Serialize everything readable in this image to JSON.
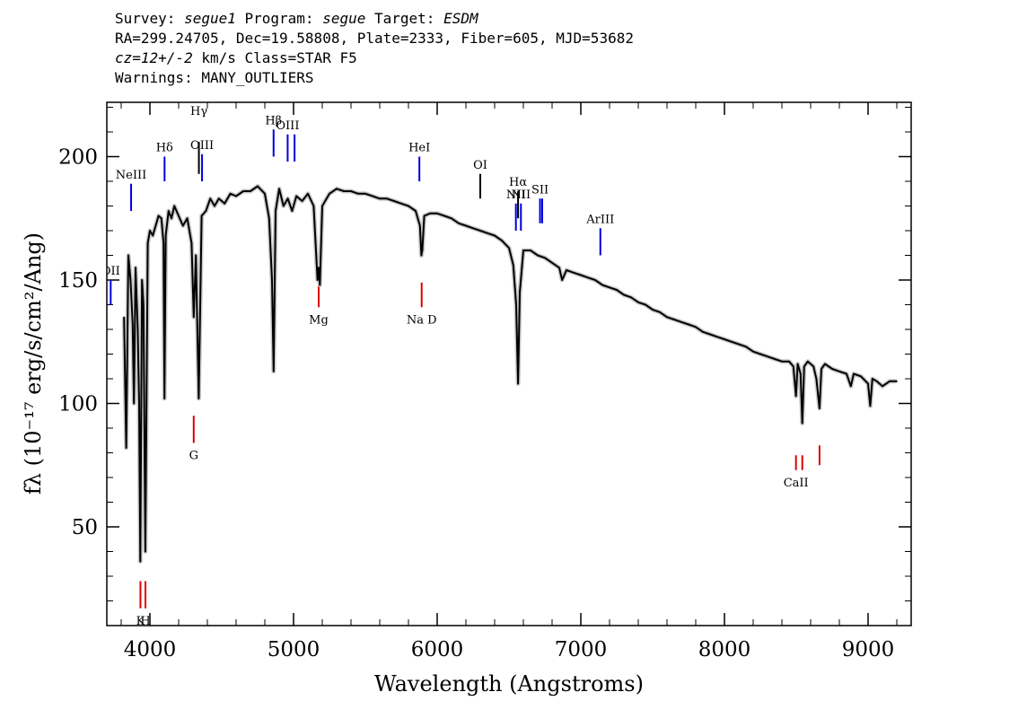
{
  "header": {
    "line1": {
      "survey_label": "Survey: ",
      "survey": "segue1",
      "program_label": " Program: ",
      "program": "segue",
      "target_label": " Target: ",
      "target": "ESDM"
    },
    "line2": "RA=299.24705, Dec=19.58808, Plate=2333, Fiber=605, MJD=53682",
    "line3": {
      "cz": "cz=12+/-2",
      "rest": " km/s Class=STAR F5"
    },
    "line4": "Warnings: MANY_OUTLIERS"
  },
  "chart_data": {
    "type": "line",
    "xlabel": "Wavelength (Angstroms)",
    "ylabel": "fλ (10⁻¹⁷ erg/s/cm²/Ang)",
    "xlim": [
      3700,
      9300
    ],
    "ylim": [
      10,
      222
    ],
    "x_ticks": [
      4000,
      5000,
      6000,
      7000,
      8000,
      9000
    ],
    "y_ticks": [
      50,
      100,
      150,
      200
    ],
    "grid": false,
    "series": [
      {
        "color": "#000000",
        "points": [
          [
            3820,
            135
          ],
          [
            3835,
            82
          ],
          [
            3850,
            160
          ],
          [
            3865,
            150
          ],
          [
            3880,
            132
          ],
          [
            3889,
            100
          ],
          [
            3900,
            155
          ],
          [
            3915,
            130
          ],
          [
            3925,
            100
          ],
          [
            3933,
            36
          ],
          [
            3945,
            150
          ],
          [
            3955,
            140
          ],
          [
            3968,
            40
          ],
          [
            3985,
            165
          ],
          [
            4000,
            170
          ],
          [
            4020,
            168
          ],
          [
            4040,
            172
          ],
          [
            4060,
            176
          ],
          [
            4080,
            175
          ],
          [
            4095,
            165
          ],
          [
            4101,
            102
          ],
          [
            4110,
            168
          ],
          [
            4130,
            178
          ],
          [
            4150,
            175
          ],
          [
            4170,
            180
          ],
          [
            4200,
            176
          ],
          [
            4230,
            172
          ],
          [
            4260,
            175
          ],
          [
            4290,
            165
          ],
          [
            4305,
            135
          ],
          [
            4320,
            160
          ],
          [
            4340,
            102
          ],
          [
            4360,
            176
          ],
          [
            4390,
            178
          ],
          [
            4420,
            183
          ],
          [
            4450,
            180
          ],
          [
            4480,
            183
          ],
          [
            4520,
            181
          ],
          [
            4560,
            185
          ],
          [
            4600,
            184
          ],
          [
            4650,
            186
          ],
          [
            4700,
            186
          ],
          [
            4750,
            188
          ],
          [
            4800,
            185
          ],
          [
            4830,
            175
          ],
          [
            4850,
            150
          ],
          [
            4861,
            113
          ],
          [
            4875,
            178
          ],
          [
            4900,
            187
          ],
          [
            4930,
            180
          ],
          [
            4960,
            183
          ],
          [
            4990,
            178
          ],
          [
            5020,
            184
          ],
          [
            5060,
            182
          ],
          [
            5100,
            185
          ],
          [
            5140,
            180
          ],
          [
            5167,
            150
          ],
          [
            5175,
            155
          ],
          [
            5183,
            148
          ],
          [
            5200,
            180
          ],
          [
            5250,
            185
          ],
          [
            5300,
            187
          ],
          [
            5350,
            186
          ],
          [
            5400,
            186
          ],
          [
            5450,
            185
          ],
          [
            5500,
            185
          ],
          [
            5550,
            184
          ],
          [
            5600,
            183
          ],
          [
            5650,
            183
          ],
          [
            5700,
            182
          ],
          [
            5750,
            181
          ],
          [
            5800,
            180
          ],
          [
            5850,
            178
          ],
          [
            5880,
            172
          ],
          [
            5890,
            160
          ],
          [
            5896,
            162
          ],
          [
            5910,
            176
          ],
          [
            5950,
            177
          ],
          [
            6000,
            177
          ],
          [
            6050,
            176
          ],
          [
            6100,
            175
          ],
          [
            6150,
            173
          ],
          [
            6200,
            172
          ],
          [
            6250,
            171
          ],
          [
            6300,
            170
          ],
          [
            6350,
            169
          ],
          [
            6400,
            168
          ],
          [
            6450,
            166
          ],
          [
            6500,
            163
          ],
          [
            6530,
            156
          ],
          [
            6550,
            140
          ],
          [
            6563,
            108
          ],
          [
            6575,
            145
          ],
          [
            6600,
            162
          ],
          [
            6650,
            162
          ],
          [
            6700,
            160
          ],
          [
            6750,
            159
          ],
          [
            6800,
            157
          ],
          [
            6850,
            155
          ],
          [
            6870,
            150
          ],
          [
            6900,
            154
          ],
          [
            6950,
            153
          ],
          [
            7000,
            152
          ],
          [
            7050,
            151
          ],
          [
            7100,
            150
          ],
          [
            7150,
            148
          ],
          [
            7200,
            147
          ],
          [
            7250,
            146
          ],
          [
            7300,
            144
          ],
          [
            7350,
            143
          ],
          [
            7400,
            141
          ],
          [
            7450,
            140
          ],
          [
            7500,
            138
          ],
          [
            7550,
            137
          ],
          [
            7600,
            135
          ],
          [
            7650,
            134
          ],
          [
            7700,
            133
          ],
          [
            7750,
            132
          ],
          [
            7800,
            131
          ],
          [
            7850,
            129
          ],
          [
            7900,
            128
          ],
          [
            7950,
            127
          ],
          [
            8000,
            126
          ],
          [
            8050,
            125
          ],
          [
            8100,
            124
          ],
          [
            8150,
            123
          ],
          [
            8200,
            121
          ],
          [
            8250,
            120
          ],
          [
            8300,
            119
          ],
          [
            8350,
            118
          ],
          [
            8400,
            117
          ],
          [
            8450,
            117
          ],
          [
            8480,
            115
          ],
          [
            8498,
            103
          ],
          [
            8510,
            116
          ],
          [
            8530,
            112
          ],
          [
            8542,
            92
          ],
          [
            8555,
            115
          ],
          [
            8580,
            117
          ],
          [
            8620,
            115
          ],
          [
            8640,
            110
          ],
          [
            8662,
            98
          ],
          [
            8675,
            114
          ],
          [
            8700,
            116
          ],
          [
            8750,
            114
          ],
          [
            8800,
            113
          ],
          [
            8850,
            112
          ],
          [
            8880,
            107
          ],
          [
            8900,
            112
          ],
          [
            8950,
            111
          ],
          [
            9000,
            108
          ],
          [
            9015,
            99
          ],
          [
            9030,
            110
          ],
          [
            9060,
            109
          ],
          [
            9100,
            107
          ],
          [
            9150,
            109
          ],
          [
            9200,
            109
          ]
        ]
      }
    ],
    "annotations": [
      {
        "label": "OII",
        "wave": 3727,
        "y_lo": 140,
        "y_hi": 150,
        "color": "#0000dd"
      },
      {
        "label": "NeIII",
        "wave": 3869,
        "y_lo": 178,
        "y_hi": 189,
        "color": "#0000dd"
      },
      {
        "label": "Hδ",
        "wave": 4102,
        "y_lo": 190,
        "y_hi": 200,
        "color": "#0000dd"
      },
      {
        "label": "Hγ",
        "wave": 4341,
        "y_lo": 193,
        "y_hi": 206,
        "color": "#000000",
        "label_y": 222
      },
      {
        "label": "OIII",
        "wave": 4363,
        "y_lo": 190,
        "y_hi": 201,
        "color": "#0000dd"
      },
      {
        "label": "Hβ",
        "wave": 4861,
        "y_lo": 200,
        "y_hi": 211,
        "color": "#0000dd"
      },
      {
        "label": "OIII",
        "wave": 4959,
        "y_lo": 198,
        "y_hi": 209,
        "color": "#0000dd"
      },
      {
        "label": "",
        "wave": 5007,
        "y_lo": 198,
        "y_hi": 209,
        "color": "#0000dd"
      },
      {
        "label": "HeI",
        "wave": 5876,
        "y_lo": 190,
        "y_hi": 200,
        "color": "#0000dd"
      },
      {
        "label": "OI",
        "wave": 6300,
        "y_lo": 183,
        "y_hi": 193,
        "color": "#000000"
      },
      {
        "label": "NII",
        "wave": 6548,
        "y_lo": 170,
        "y_hi": 181,
        "color": "#0000dd"
      },
      {
        "label": "Hα",
        "wave": 6563,
        "y_lo": 175,
        "y_hi": 186,
        "color": "#000000"
      },
      {
        "label": "NII",
        "wave": 6583,
        "y_lo": 170,
        "y_hi": 181,
        "color": "#0000dd"
      },
      {
        "label": "SII",
        "wave": 6716,
        "y_lo": 173,
        "y_hi": 183,
        "color": "#0000dd"
      },
      {
        "label": "",
        "wave": 6731,
        "y_lo": 173,
        "y_hi": 183,
        "color": "#0000dd"
      },
      {
        "label": "ArIII",
        "wave": 7136,
        "y_lo": 160,
        "y_hi": 171,
        "color": "#0000dd"
      },
      {
        "label": "Mg",
        "wave": 5175,
        "y_lo": 139,
        "y_hi": 149,
        "color": "#dd0000",
        "below": true
      },
      {
        "label": "Na D",
        "wave": 5892,
        "y_lo": 139,
        "y_hi": 149,
        "color": "#dd0000",
        "below": true
      },
      {
        "label": "G",
        "wave": 4305,
        "y_lo": 84,
        "y_hi": 95,
        "color": "#dd0000",
        "below": true
      },
      {
        "label": "K",
        "wave": 3934,
        "y_lo": 17,
        "y_hi": 28,
        "color": "#dd0000",
        "below": true
      },
      {
        "label": "H",
        "wave": 3969,
        "y_lo": 17,
        "y_hi": 28,
        "color": "#dd0000",
        "below": true
      },
      {
        "label": "CaII",
        "wave": 8498,
        "y_lo": 73,
        "y_hi": 79,
        "color": "#dd0000",
        "below": true
      },
      {
        "label": "",
        "wave": 8542,
        "y_lo": 73,
        "y_hi": 79,
        "color": "#dd0000"
      },
      {
        "label": "",
        "wave": 8662,
        "y_lo": 75,
        "y_hi": 83,
        "color": "#dd0000"
      }
    ]
  }
}
